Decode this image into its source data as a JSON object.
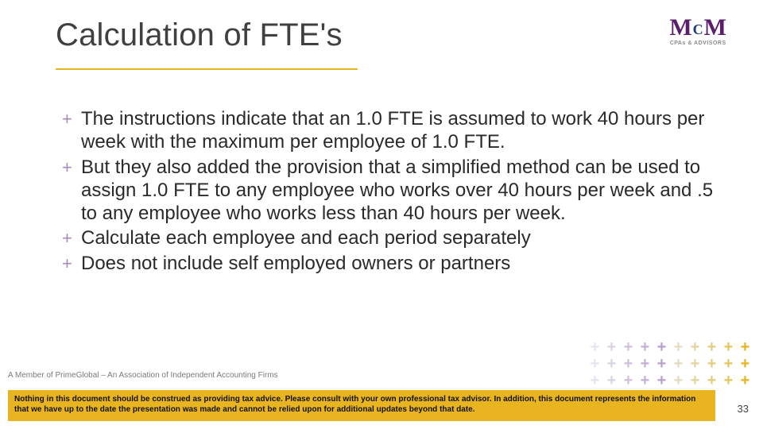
{
  "title": "Calculation of FTE's",
  "logo": {
    "part1": "M",
    "part2": "C",
    "part3": "M",
    "tagline": "CPAs & ADVISORS"
  },
  "bullets": [
    "The instructions indicate that an 1.0 FTE is assumed to work 40 hours per week with the maximum per employee of 1.0 FTE.",
    "But they also added the provision that a simplified method can be used to assign 1.0 FTE to any employee who works over 40 hours per week and .5 to any employee who works less than 40 hours per week.",
    " Calculate each employee and each period separately",
    "Does not include self employed owners or partners"
  ],
  "member_text": "A Member of PrimeGlobal – An Association of Independent Accounting Firms",
  "disclaimer": "Nothing in this document should be construed as providing tax advice.  Please consult with your own professional tax advisor.  In addition, this document represents the information that we have up to the date the presentation was made and cannot be relied upon for additional updates beyond that date.",
  "page_number": "33",
  "colors": {
    "title_underline": "#e8b420",
    "bullet_plus": "#a78ab8",
    "disclaimer_bg": "#e8b420",
    "logo_purple": "#5a1e6d",
    "logo_blue": "#163a7a"
  },
  "plus_grid": {
    "rows": 3,
    "cols": 10,
    "colors": [
      [
        "#e8e1ee",
        "#dcd2e6",
        "#cfc0dd",
        "#c4b1d6",
        "#b7a0cd",
        "#e3dac0",
        "#e3d39e",
        "#e3cc7d",
        "#e6c65b",
        "#e8b420"
      ],
      [
        "#e8e1ee",
        "#dcd2e6",
        "#cfc0dd",
        "#c4b1d6",
        "#b7a0cd",
        "#e3dac0",
        "#e3d39e",
        "#e3cc7d",
        "#e6c65b",
        "#e8b420"
      ],
      [
        "#e8e1ee",
        "#dcd2e6",
        "#cfc0dd",
        "#c4b1d6",
        "#b7a0cd",
        "#e3dac0",
        "#e3d39e",
        "#e3cc7d",
        "#e6c65b",
        "#e8b420"
      ]
    ]
  }
}
